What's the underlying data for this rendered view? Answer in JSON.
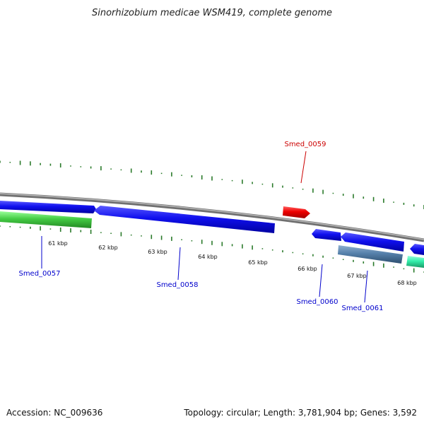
{
  "title": "Sinorhizobium medicae WSM419, complete genome",
  "footer": {
    "accession": "Accession: NC_009636",
    "summary": "Topology: circular; Length: 3,781,904 bp; Genes: 3,592"
  },
  "ticks": [
    "61 kbp",
    "62 kbp",
    "63 kbp",
    "64 kbp",
    "65 kbp",
    "66 kbp",
    "67 kbp",
    "68 kbp"
  ],
  "genes": [
    {
      "id": "Smed_0057",
      "color": "#0000dd"
    },
    {
      "id": "Smed_0058",
      "color": "#0000dd"
    },
    {
      "id": "Smed_0059",
      "color": "#cc0000"
    },
    {
      "id": "Smed_0060",
      "color": "#0000dd"
    },
    {
      "id": "Smed_0061",
      "color": "#0000dd"
    }
  ],
  "colors": {
    "backbone": "#808080",
    "cds_forward": "#ee0000",
    "cds_reverse": "#1010ee",
    "rna_green": "#44cc44",
    "steel": "#5580aa",
    "teal": "#33eeaa",
    "gc_ticks": "#2a7a2a"
  }
}
